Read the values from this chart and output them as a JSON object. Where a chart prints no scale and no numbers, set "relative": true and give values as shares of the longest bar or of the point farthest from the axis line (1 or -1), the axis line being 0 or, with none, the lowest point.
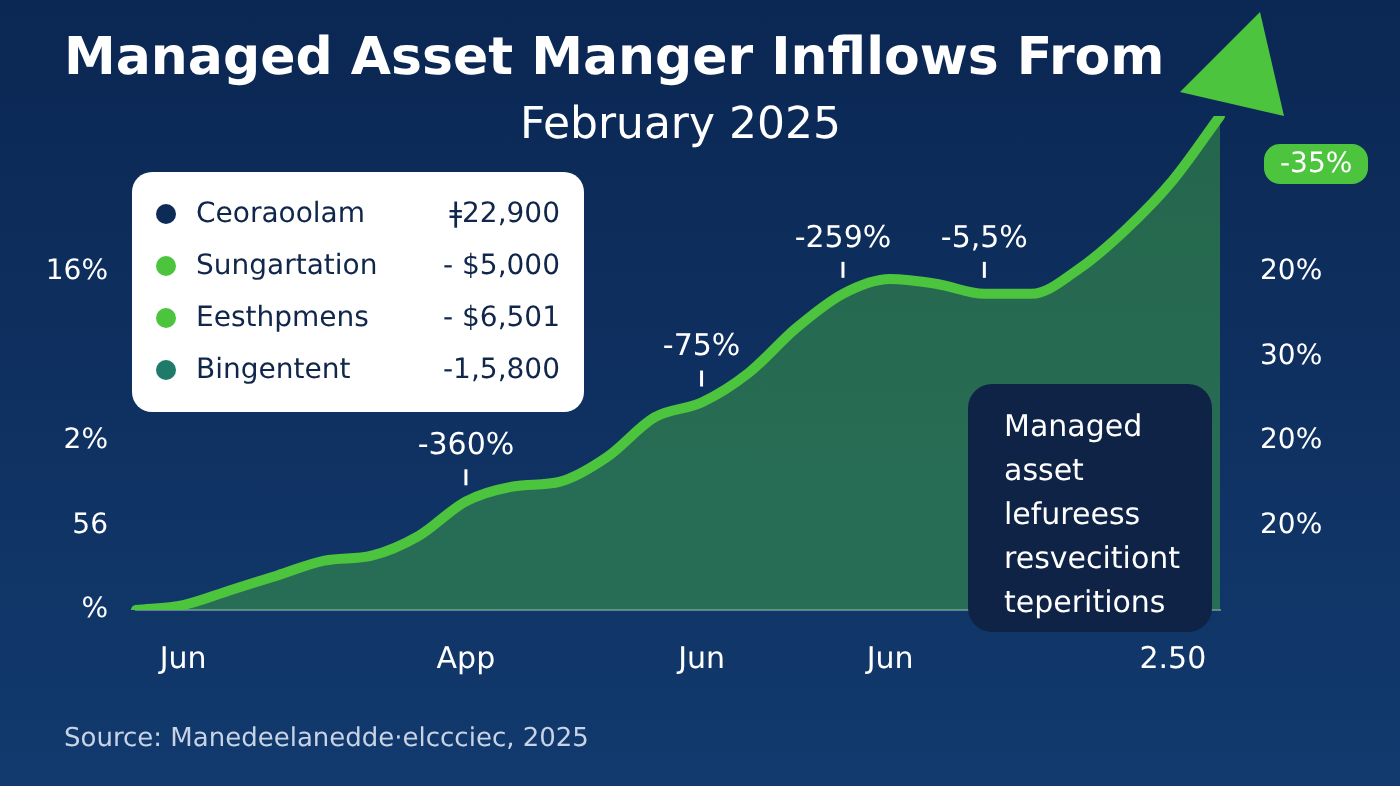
{
  "chart_data": {
    "type": "area",
    "title": "Managed Asset Manger Infllows From",
    "subtitle": "February 2025",
    "relative": true,
    "categories": [
      null,
      "Jun",
      null,
      null,
      null,
      null,
      null,
      "App",
      null,
      null,
      null,
      null,
      "Jun",
      null,
      null,
      null,
      "Jun",
      null,
      null,
      null,
      null,
      null,
      "2.50",
      null
    ],
    "series": [
      {
        "color": "#4cc43e",
        "values": [
          0,
          0.01,
          0.04,
          0.07,
          0.1,
          0.11,
          0.15,
          0.22,
          0.25,
          0.26,
          0.31,
          0.39,
          0.42,
          0.48,
          0.57,
          0.64,
          0.67,
          0.66,
          0.64,
          0.64,
          0.69,
          0.77,
          0.87,
          1
        ]
      }
    ],
    "annotations": [
      "Ceoraoolam",
      "ǂ22,900",
      "Sungartation",
      "- $5,000",
      "Eesthpmens",
      "- $6,501",
      "Bingentent",
      "-1,5,800",
      "Managed asset lefureess resvecitiont teperitions",
      "-35%",
      "Source: Manedeelanedde·elccciec, 2025",
      "-360%",
      "-75%",
      "-259%",
      "-5,5%",
      "16%",
      "2%",
      "56",
      "%",
      "20%",
      "30%",
      "20%",
      "20%"
    ]
  }
}
